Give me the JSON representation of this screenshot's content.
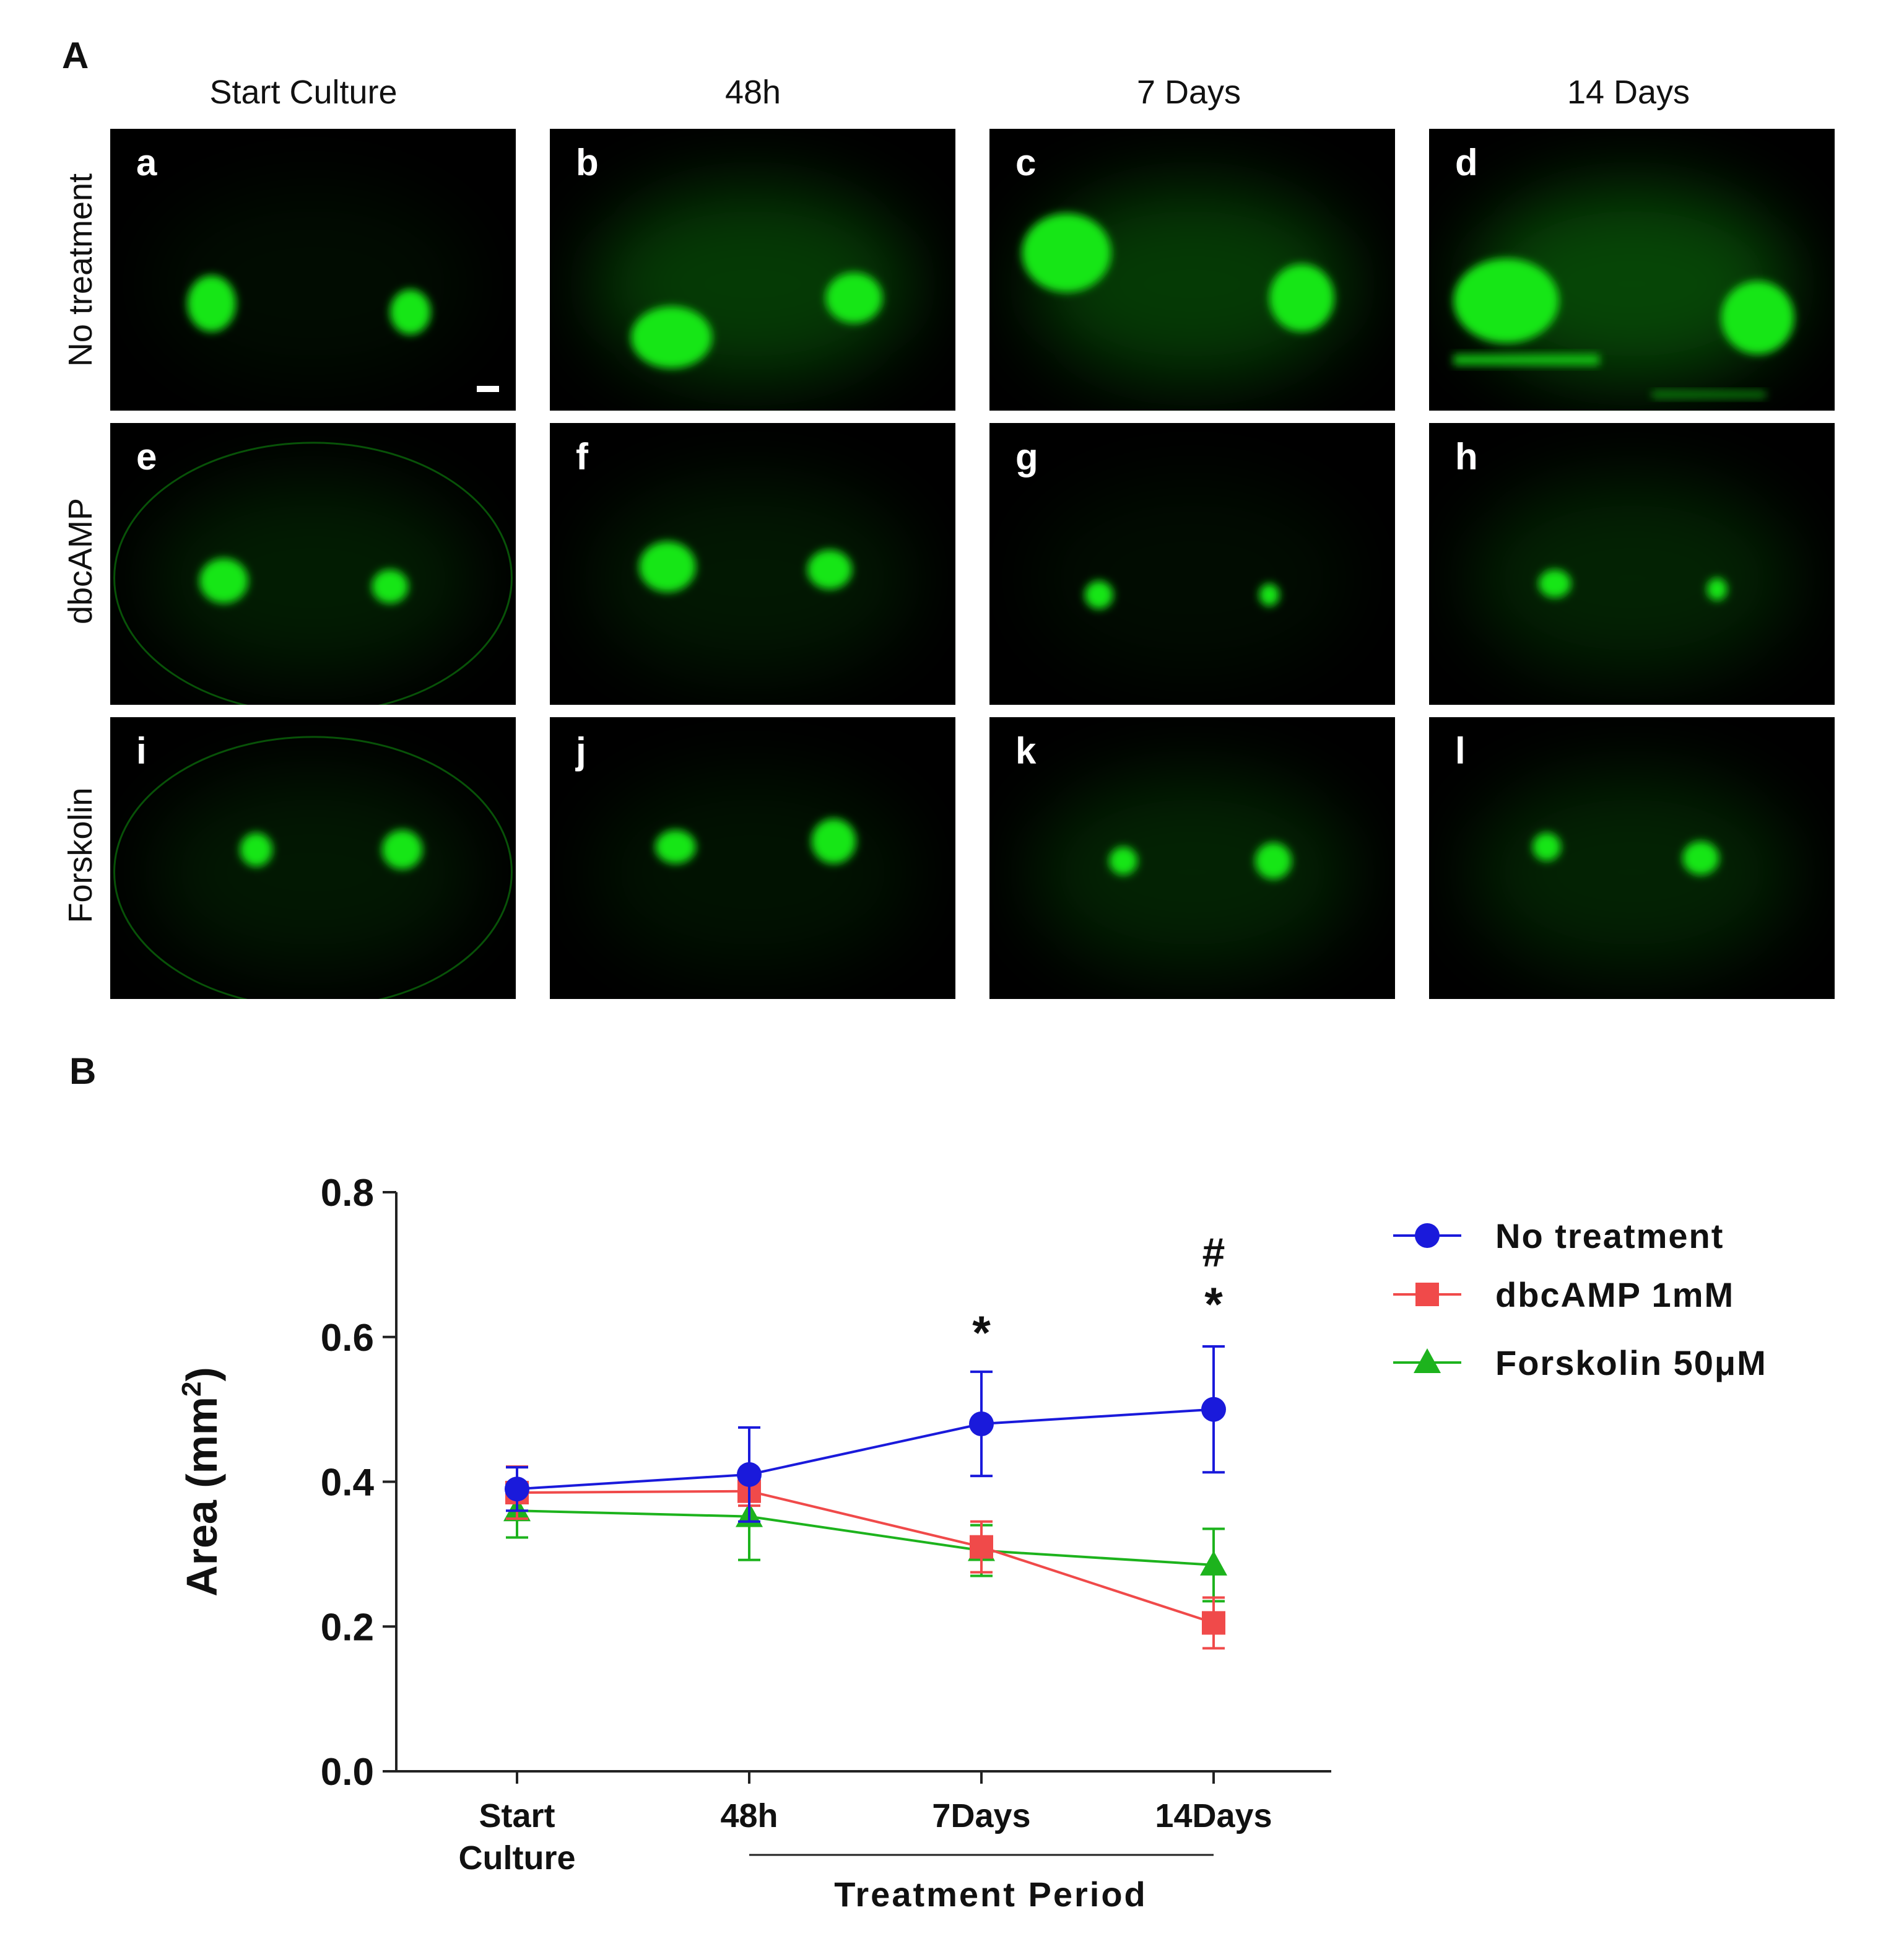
{
  "figure": {
    "panel_a_label": "A",
    "panel_b_label": "B",
    "columns": [
      "Start Culture",
      "48h",
      "7 Days",
      "14 Days"
    ],
    "rows": [
      "No treatment",
      "dbcAMP",
      "Forskolin"
    ],
    "tiles": [
      {
        "label": "a"
      },
      {
        "label": "b"
      },
      {
        "label": "c"
      },
      {
        "label": "d"
      },
      {
        "label": "e"
      },
      {
        "label": "f"
      },
      {
        "label": "g"
      },
      {
        "label": "h"
      },
      {
        "label": "i"
      },
      {
        "label": "j"
      },
      {
        "label": "k"
      },
      {
        "label": "l"
      }
    ],
    "colors": {
      "fluorescence": "#19e619",
      "background": "#000000"
    }
  },
  "chart_data": {
    "type": "line",
    "categories": [
      "Start Culture",
      "48h",
      "7Days",
      "14Days"
    ],
    "category_lines": [
      [
        "Start",
        "Culture"
      ],
      [
        "48h"
      ],
      [
        "7Days"
      ],
      [
        "14Days"
      ]
    ],
    "ylabel": "Area (mm",
    "ylabel_sup": "2",
    "ylabel_close": ")",
    "xgroup_label": "Treatment Period",
    "ylim": [
      0.0,
      0.8
    ],
    "yticks": [
      "0.0",
      "0.2",
      "0.4",
      "0.6",
      "0.8"
    ],
    "series": [
      {
        "name": "No treatment",
        "marker": "circle",
        "color": "#1a1adb",
        "values": [
          0.39,
          0.41,
          0.48,
          0.5
        ],
        "err": [
          0.03,
          0.065,
          0.072,
          0.087
        ]
      },
      {
        "name": "dbcAMP 1mM",
        "marker": "square",
        "color": "#f04a4a",
        "values": [
          0.385,
          0.387,
          0.31,
          0.205
        ],
        "err": [
          0.036,
          0.02,
          0.035,
          0.035
        ]
      },
      {
        "name": "Forskolin 50μM",
        "marker": "triangle",
        "color": "#1db31d",
        "values": [
          0.36,
          0.352,
          0.305,
          0.285
        ],
        "err": [
          0.037,
          0.06,
          0.035,
          0.05
        ]
      }
    ],
    "annotations": [
      {
        "category": "7Days",
        "text": "*"
      },
      {
        "category": "14Days",
        "text": "*"
      },
      {
        "category": "14Days",
        "text": "#"
      }
    ],
    "legend_position": "right"
  }
}
